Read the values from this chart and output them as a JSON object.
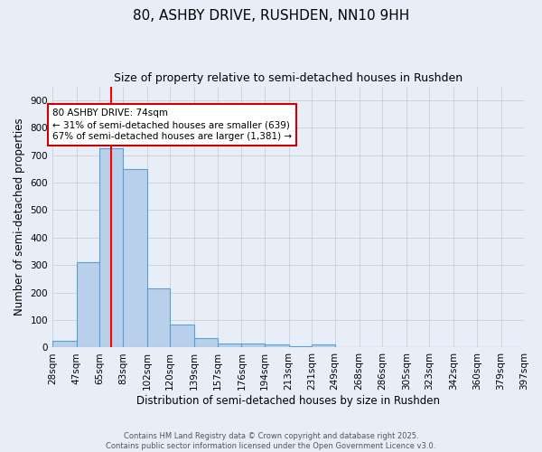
{
  "title": "80, ASHBY DRIVE, RUSHDEN, NN10 9HH",
  "subtitle": "Size of property relative to semi-detached houses in Rushden",
  "xlabel": "Distribution of semi-detached houses by size in Rushden",
  "ylabel": "Number of semi-detached properties",
  "bin_labels": [
    "28sqm",
    "47sqm",
    "65sqm",
    "83sqm",
    "102sqm",
    "120sqm",
    "139sqm",
    "157sqm",
    "176sqm",
    "194sqm",
    "213sqm",
    "231sqm",
    "249sqm",
    "268sqm",
    "286sqm",
    "305sqm",
    "323sqm",
    "342sqm",
    "360sqm",
    "379sqm",
    "397sqm"
  ],
  "bin_edges": [
    28,
    47,
    65,
    83,
    102,
    120,
    139,
    157,
    176,
    194,
    213,
    231,
    249,
    268,
    286,
    305,
    323,
    342,
    360,
    379,
    397
  ],
  "bar_heights": [
    25,
    310,
    725,
    650,
    215,
    85,
    35,
    15,
    15,
    10,
    5,
    10,
    0,
    0,
    0,
    0,
    0,
    0,
    0,
    0
  ],
  "bar_color": "#b8d0ea",
  "bar_edge_color": "#5a9fd4",
  "red_line_x": 74,
  "annotation_text": "80 ASHBY DRIVE: 74sqm\n← 31% of semi-detached houses are smaller (639)\n67% of semi-detached houses are larger (1,381) →",
  "annotation_box_color": "#ffffff",
  "annotation_box_edge_color": "#cc0000",
  "ylim": [
    0,
    950
  ],
  "background_color": "#e8eef8",
  "grid_color": "#c8c8c8",
  "footer_line1": "Contains HM Land Registry data © Crown copyright and database right 2025.",
  "footer_line2": "Contains public sector information licensed under the Open Government Licence v3.0.",
  "title_fontsize": 11,
  "subtitle_fontsize": 9,
  "axis_label_fontsize": 8.5,
  "tick_fontsize": 7.5,
  "annotation_fontsize": 7.5
}
